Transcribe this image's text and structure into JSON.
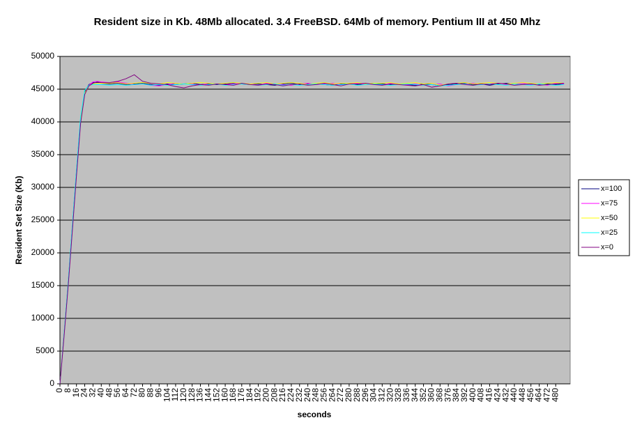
{
  "chart_data": {
    "type": "line",
    "title": "Resident size in Kb. 48Mb allocated. 3.4 FreeBSD. 64Mb of memory. Pentium III at 450 Mhz",
    "x_label": "seconds",
    "y_label": "Resident Set Size (Kb)",
    "x": [
      0,
      4,
      8,
      12,
      16,
      20,
      24,
      28,
      32,
      36,
      40,
      48,
      56,
      64,
      72,
      80,
      88,
      96,
      104,
      112,
      120,
      128,
      136,
      144,
      152,
      160,
      168,
      176,
      184,
      192,
      200,
      208,
      216,
      224,
      232,
      240,
      248,
      256,
      264,
      272,
      280,
      288,
      296,
      304,
      312,
      320,
      328,
      336,
      344,
      352,
      360,
      368,
      376,
      384,
      392,
      400,
      408,
      416,
      424,
      432,
      440,
      448,
      456,
      464,
      472,
      480,
      488
    ],
    "xlim": [
      0,
      494
    ],
    "xticks": [
      0,
      8,
      16,
      24,
      32,
      40,
      48,
      56,
      64,
      72,
      80,
      88,
      96,
      104,
      112,
      120,
      128,
      136,
      144,
      152,
      160,
      168,
      176,
      184,
      192,
      200,
      208,
      216,
      224,
      232,
      240,
      248,
      256,
      264,
      272,
      280,
      288,
      296,
      304,
      312,
      320,
      328,
      336,
      344,
      352,
      360,
      368,
      376,
      384,
      392,
      400,
      408,
      416,
      424,
      432,
      440,
      448,
      456,
      464,
      472,
      480
    ],
    "ylim": [
      0,
      50000
    ],
    "yticks": [
      0,
      5000,
      10000,
      15000,
      20000,
      25000,
      30000,
      35000,
      40000,
      45000,
      50000
    ],
    "grid": true,
    "legend": "right",
    "background": "#c0c0c0",
    "series": [
      {
        "name": "x=100",
        "color": "#000080",
        "values": [
          0,
          7600,
          15500,
          24000,
          32500,
          40500,
          44600,
          45700,
          46000,
          46000,
          45900,
          45800,
          45900,
          45700,
          45800,
          45900,
          45700,
          45600,
          45800,
          45700,
          45800,
          45900,
          45700,
          45800,
          45700,
          45800,
          45900,
          45800,
          45700,
          45800,
          45700,
          45600,
          45800,
          45900,
          45700,
          45800,
          45800,
          45700,
          45600,
          45800,
          45900,
          45700,
          45800,
          45900,
          45800,
          45700,
          45800,
          45700,
          45600,
          45800,
          45700,
          45500,
          45700,
          45800,
          45900,
          45700,
          45800,
          45600,
          45800,
          45900,
          45800,
          45700,
          45800,
          45700,
          45800,
          45700,
          45800
        ]
      },
      {
        "name": "x=75",
        "color": "#ff00ff",
        "values": [
          0,
          7400,
          15200,
          23600,
          32000,
          40000,
          44300,
          45600,
          46100,
          46200,
          46100,
          46000,
          46100,
          45900,
          45700,
          45800,
          45600,
          45500,
          45700,
          45900,
          45800,
          45800,
          45600,
          45900,
          45800,
          45700,
          45800,
          45900,
          45800,
          45600,
          45900,
          45800,
          45700,
          45600,
          45800,
          45900,
          45700,
          45800,
          45900,
          45700,
          45800,
          45900,
          45700,
          45800,
          45600,
          45900,
          45800,
          45700,
          45800,
          45600,
          45700,
          45800,
          45500,
          45700,
          45800,
          45900,
          45700,
          45800,
          45900,
          45700,
          45800,
          45900,
          45700,
          45800,
          45600,
          45900,
          45800
        ]
      },
      {
        "name": "x=50",
        "color": "#ffff00",
        "values": [
          0,
          7500,
          15400,
          23800,
          32200,
          40200,
          44400,
          45500,
          45800,
          45900,
          45900,
          45900,
          46000,
          45800,
          45900,
          46000,
          45900,
          45800,
          46000,
          45900,
          45800,
          45900,
          46000,
          45900,
          45800,
          45900,
          46000,
          45900,
          45800,
          45900,
          46000,
          45800,
          45900,
          46000,
          45900,
          45700,
          45900,
          46000,
          45800,
          45900,
          45900,
          46000,
          45800,
          45900,
          45900,
          46000,
          45800,
          45900,
          46000,
          45800,
          45900,
          45600,
          45800,
          45900,
          46000,
          45800,
          45900,
          46000,
          45900,
          45800,
          45900,
          46000,
          45900,
          45800,
          45900,
          46000,
          45900
        ]
      },
      {
        "name": "x=25",
        "color": "#00ffff",
        "values": [
          0,
          7700,
          15600,
          24200,
          32700,
          40800,
          44800,
          45600,
          45700,
          45700,
          45700,
          45600,
          45700,
          45600,
          45700,
          45800,
          45600,
          45700,
          45600,
          45700,
          45800,
          45700,
          45600,
          45700,
          45800,
          45600,
          45700,
          45800,
          45700,
          45600,
          45700,
          45800,
          45600,
          45700,
          45600,
          45700,
          45800,
          45700,
          45600,
          45700,
          45800,
          45600,
          45700,
          45800,
          45700,
          45600,
          45700,
          45800,
          45700,
          45600,
          45700,
          45500,
          45600,
          45700,
          45800,
          45600,
          45700,
          45800,
          45700,
          45600,
          45800,
          45700,
          45600,
          45800,
          45700,
          45600,
          45700
        ]
      },
      {
        "name": "x=0",
        "color": "#800080",
        "values": [
          0,
          7300,
          15000,
          23400,
          31800,
          39800,
          44200,
          45500,
          45900,
          46100,
          46000,
          46000,
          46200,
          46600,
          47200,
          46200,
          45900,
          45800,
          45700,
          45400,
          45200,
          45500,
          45700,
          45600,
          45800,
          45700,
          45600,
          45900,
          45700,
          45600,
          45800,
          45700,
          45500,
          45700,
          45800,
          45600,
          45700,
          45900,
          45700,
          45500,
          45800,
          45800,
          45900,
          45700,
          45600,
          45800,
          45700,
          45600,
          45500,
          45700,
          45300,
          45500,
          45800,
          45900,
          45700,
          45600,
          45800,
          45700,
          45900,
          45800,
          45600,
          45700,
          45800,
          45600,
          45700,
          45800,
          45900
        ]
      }
    ]
  }
}
